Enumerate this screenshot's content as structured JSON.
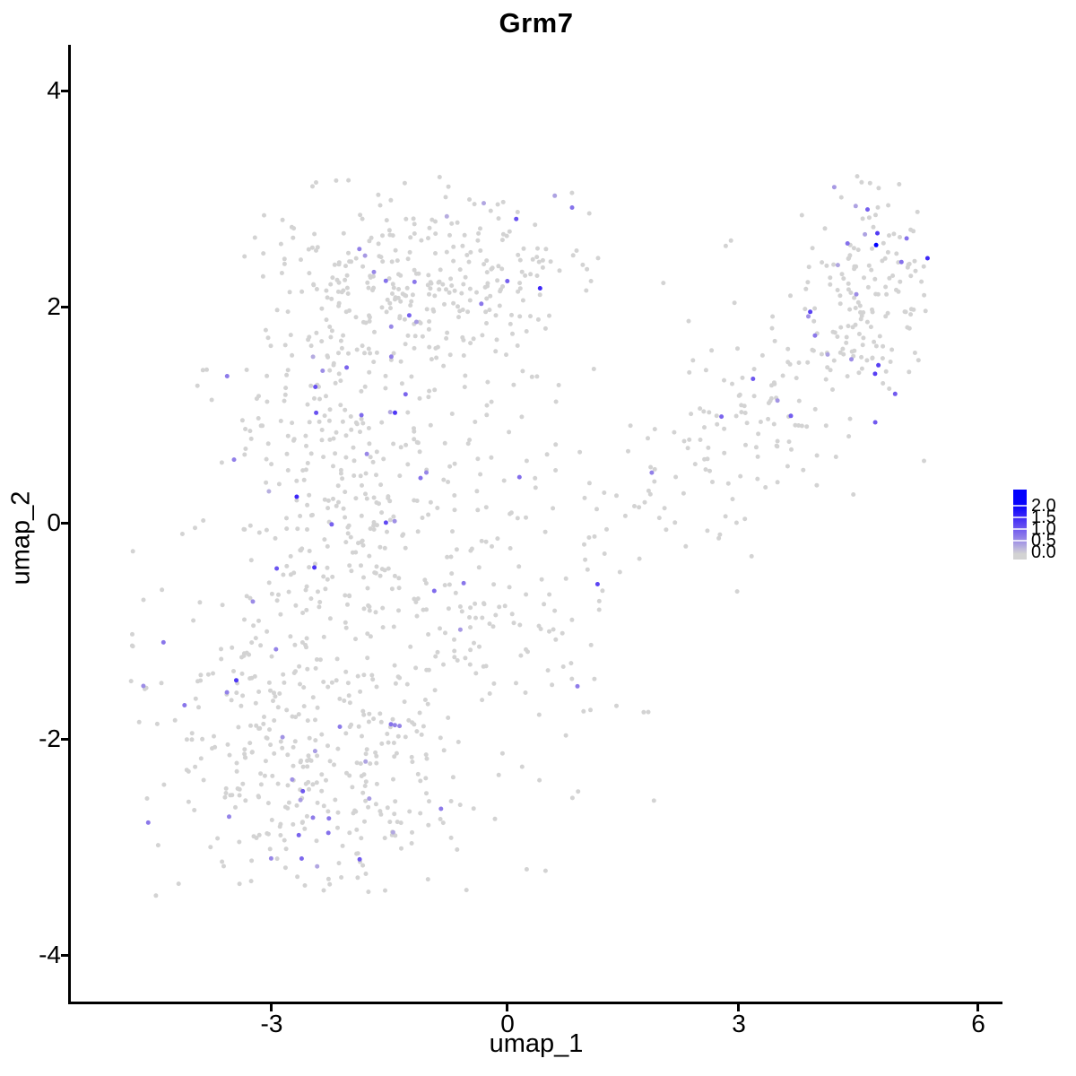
{
  "title": "Grm7",
  "axes": {
    "x": {
      "label": "umap_1",
      "ticks": [
        "-3",
        "0",
        "3",
        "6"
      ]
    },
    "y": {
      "label": "umap_2",
      "ticks": [
        "4",
        "2",
        "0",
        "-2",
        "-4"
      ]
    }
  },
  "legend": {
    "labels": [
      "2.0",
      "1.5",
      "1.0",
      "0.5",
      "0.0"
    ],
    "color_high": "#0000ff",
    "color_low": "#d3d3d3"
  },
  "chart_data": {
    "type": "scatter",
    "title": "Grm7",
    "xlabel": "umap_1",
    "ylabel": "umap_2",
    "xlim": [
      -4.9,
      6.4
    ],
    "ylim": [
      -4.45,
      4.45
    ],
    "x_ticks": [
      -3,
      0,
      3,
      6
    ],
    "y_ticks": [
      4,
      2,
      0,
      -2,
      -4
    ],
    "grid": false,
    "legend_position": "right",
    "color_scale": {
      "low": "#d3d3d3",
      "high": "#0000ff",
      "domain": [
        0,
        2
      ],
      "label_values": [
        2.0,
        1.5,
        1.0,
        0.5,
        0.0
      ]
    },
    "point_radius_px": 2.5,
    "n_points_estimate": 1500,
    "seed": 7,
    "distribution_clusters": [
      {
        "name": "top-middle-lobe",
        "n": 300,
        "cx": -0.9,
        "cy": 2.25,
        "sx": 1.05,
        "sy": 0.45,
        "rot": 0,
        "expr_p": 0.06
      },
      {
        "name": "left-lobe",
        "n": 310,
        "cx": -2.1,
        "cy": 0.55,
        "sx": 0.75,
        "sy": 0.85,
        "rot": 0,
        "expr_p": 0.06
      },
      {
        "name": "center-region",
        "n": 200,
        "cx": -0.3,
        "cy": -0.5,
        "sx": 1.05,
        "sy": 0.9,
        "rot": 0,
        "expr_p": 0.05
      },
      {
        "name": "bottom-left-lobe",
        "n": 385,
        "cx": -2.5,
        "cy": -2.15,
        "sx": 0.9,
        "sy": 0.7,
        "rot": 0,
        "expr_p": 0.05
      },
      {
        "name": "right-arm",
        "n": 150,
        "cx": 3.1,
        "cy": 0.9,
        "sx": 1.15,
        "sy": 0.5,
        "rot": 35,
        "expr_p": 0.05
      },
      {
        "name": "top-right-cluster",
        "n": 150,
        "cx": 4.55,
        "cy": 2.15,
        "sx": 0.45,
        "sy": 0.52,
        "rot": 0,
        "expr_p": 0.12
      },
      {
        "name": "far-left-outliers",
        "n": 7,
        "cx": -4.72,
        "cy": -1.3,
        "sx": 0.09,
        "sy": 0.2,
        "rot": 0,
        "expr_p": 0.0
      }
    ],
    "highlight_points": [
      {
        "x": 4.71,
        "y": 2.57,
        "value": 2.0
      },
      {
        "x": -4.63,
        "y": -1.51,
        "value": 0.6
      },
      {
        "x": 4.6,
        "y": 2.9,
        "value": 1.0
      }
    ]
  }
}
